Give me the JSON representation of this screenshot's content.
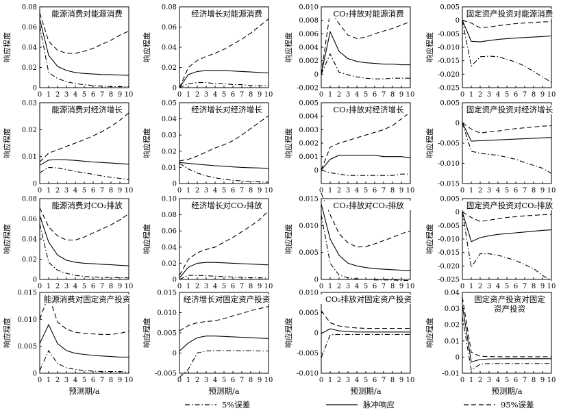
{
  "ylabel": "响应程度",
  "xlabel": "预测期/a",
  "x_ticks": [
    "0",
    "1",
    "2",
    "3",
    "4",
    "5",
    "6",
    "7",
    "8",
    "9",
    "10"
  ],
  "legend": [
    {
      "label": "5%误差",
      "style": "dashdot"
    },
    {
      "label": "脉冲响应",
      "style": "solid"
    },
    {
      "label": "95%误差",
      "style": "dashed"
    }
  ],
  "chart_data": [
    {
      "type": "line",
      "title": "能源消费对能源消费",
      "ylim": [
        0,
        0.08
      ],
      "yticks": [
        0,
        0.02,
        0.04,
        0.06,
        0.08
      ],
      "ytick_labels": [
        "0",
        "0.02",
        "0.04",
        "0.06",
        "0.08"
      ],
      "x": [
        0,
        1,
        2,
        3,
        4,
        5,
        6,
        7,
        8,
        9,
        10
      ],
      "lower": [
        0.061,
        0.015,
        0.009,
        0.006,
        0.004,
        0.003,
        0.002,
        0.0015,
        0.001,
        0.001,
        0.001
      ],
      "impulse": [
        0.068,
        0.032,
        0.021,
        0.017,
        0.015,
        0.014,
        0.0135,
        0.013,
        0.0128,
        0.0125,
        0.0123
      ],
      "upper": [
        0.074,
        0.046,
        0.037,
        0.034,
        0.034,
        0.036,
        0.039,
        0.043,
        0.047,
        0.052,
        0.056
      ]
    },
    {
      "type": "line",
      "title": "经济增长对能源消费",
      "ylim": [
        0,
        0.08
      ],
      "yticks": [
        0,
        0.02,
        0.04,
        0.06,
        0.08
      ],
      "ytick_labels": [
        "0",
        "0.02",
        "0.04",
        "0.06",
        "0.08"
      ],
      "x": [
        0,
        1,
        2,
        3,
        4,
        5,
        6,
        7,
        8,
        9,
        10
      ],
      "lower": [
        0,
        0.004,
        0.005,
        0.005,
        0.004,
        0.004,
        0.003,
        0.003,
        0.002,
        0.002,
        0.002
      ],
      "impulse": [
        0,
        0.013,
        0.016,
        0.017,
        0.017,
        0.017,
        0.0165,
        0.016,
        0.0155,
        0.015,
        0.0145
      ],
      "upper": [
        0,
        0.02,
        0.027,
        0.031,
        0.034,
        0.038,
        0.043,
        0.048,
        0.054,
        0.061,
        0.068
      ]
    },
    {
      "type": "line",
      "title": "CO₂排放对能源消费",
      "ylim": [
        -0.002,
        0.01
      ],
      "yticks": [
        -0.002,
        0,
        0.002,
        0.004,
        0.006,
        0.008,
        0.01
      ],
      "ytick_labels": [
        "-0.002",
        "0",
        "0.002",
        "0.004",
        "0.006",
        "0.008",
        "0.010"
      ],
      "x": [
        0,
        1,
        2,
        3,
        4,
        5,
        6,
        7,
        8,
        9,
        10
      ],
      "lower": [
        0,
        0.003,
        0.0003,
        -0.0001,
        -0.0004,
        -0.0006,
        -0.0007,
        -0.0007,
        -0.0006,
        -0.0006,
        -0.0006
      ],
      "impulse": [
        0,
        0.0063,
        0.0034,
        0.0023,
        0.0019,
        0.0017,
        0.0016,
        0.0015,
        0.0015,
        0.0014,
        0.0014
      ],
      "upper": [
        0,
        0.0093,
        0.0075,
        0.0058,
        0.0053,
        0.0055,
        0.006,
        0.0064,
        0.0068,
        0.0073,
        0.0078
      ]
    },
    {
      "type": "line",
      "title": "固定资产投资对能源消费",
      "ylim": [
        -0.025,
        0.005
      ],
      "yticks": [
        -0.025,
        -0.02,
        -0.015,
        -0.01,
        -0.005,
        0,
        0.005
      ],
      "ytick_labels": [
        "-0.025",
        "-0.020",
        "-0.015",
        "-0.010",
        "-0.005",
        "0",
        "0.005"
      ],
      "x": [
        0,
        1,
        2,
        3,
        4,
        5,
        6,
        7,
        8,
        9,
        10
      ],
      "lower": [
        0,
        -0.017,
        -0.0135,
        -0.0133,
        -0.0135,
        -0.0145,
        -0.0155,
        -0.017,
        -0.019,
        -0.021,
        -0.023
      ],
      "impulse": [
        0,
        -0.0078,
        -0.008,
        -0.0075,
        -0.0071,
        -0.0068,
        -0.0066,
        -0.0064,
        -0.0062,
        -0.006,
        -0.0058
      ],
      "upper": [
        0,
        -0.001,
        -0.0028,
        -0.0025,
        -0.002,
        -0.0016,
        -0.0012,
        -0.001,
        -0.0008,
        -0.0006,
        -0.0005
      ]
    },
    {
      "type": "line",
      "title": "能源消费对经济增长",
      "ylim": [
        0,
        0.03
      ],
      "yticks": [
        0,
        0.01,
        0.02,
        0.03
      ],
      "ytick_labels": [
        "0",
        "0.01",
        "0.02",
        "0.03"
      ],
      "x": [
        0,
        1,
        2,
        3,
        4,
        5,
        6,
        7,
        8,
        9,
        10
      ],
      "lower": [
        0.004,
        0.006,
        0.0058,
        0.0052,
        0.0045,
        0.004,
        0.0034,
        0.0028,
        0.0023,
        0.0019,
        0.0015
      ],
      "impulse": [
        0.0068,
        0.0087,
        0.0089,
        0.0088,
        0.0086,
        0.0083,
        0.008,
        0.0078,
        0.0076,
        0.0074,
        0.0072
      ],
      "upper": [
        0.008,
        0.0113,
        0.0125,
        0.0138,
        0.015,
        0.0163,
        0.0177,
        0.0193,
        0.0212,
        0.0235,
        0.0262
      ]
    },
    {
      "type": "line",
      "title": "经济增长对经济增长",
      "ylim": [
        0,
        0.05
      ],
      "yticks": [
        0,
        0.01,
        0.02,
        0.03,
        0.04,
        0.05
      ],
      "ytick_labels": [
        "0",
        "0.01",
        "0.02",
        "0.03",
        "0.04",
        "0.05"
      ],
      "x": [
        0,
        1,
        2,
        3,
        4,
        5,
        6,
        7,
        8,
        9,
        10
      ],
      "lower": [
        0.0125,
        0.009,
        0.0065,
        0.0048,
        0.0035,
        0.0027,
        0.002,
        0.0016,
        0.0012,
        0.001,
        0.0008
      ],
      "impulse": [
        0.013,
        0.0125,
        0.012,
        0.0115,
        0.011,
        0.0107,
        0.0103,
        0.01,
        0.0098,
        0.0096,
        0.0093
      ],
      "upper": [
        0.014,
        0.015,
        0.017,
        0.0195,
        0.022,
        0.024,
        0.0265,
        0.03,
        0.034,
        0.038,
        0.042
      ]
    },
    {
      "type": "line",
      "title": "CO₂排放对经济增长",
      "ylim": [
        -0.001,
        0.005
      ],
      "yticks": [
        0,
        0.001,
        0.002,
        0.003,
        0.004,
        0.005
      ],
      "ytick_labels": [
        "0",
        "0.001",
        "0.002",
        "0.003",
        "0.004",
        "0.005"
      ],
      "x": [
        0,
        1,
        2,
        3,
        4,
        5,
        6,
        7,
        8,
        9,
        10
      ],
      "lower": [
        0,
        -0.0002,
        -0.0003,
        -0.0004,
        -0.0004,
        -0.0004,
        -0.0004,
        -0.0004,
        -0.0004,
        -0.0003,
        -0.0003
      ],
      "impulse": [
        0,
        0.0008,
        0.0011,
        0.0011,
        0.0011,
        0.0011,
        0.0011,
        0.001,
        0.001,
        0.001,
        0.0009
      ],
      "upper": [
        0,
        0.0017,
        0.002,
        0.0022,
        0.0024,
        0.0026,
        0.0028,
        0.003,
        0.0033,
        0.0038,
        0.0043
      ]
    },
    {
      "type": "line",
      "title": "固定资产投资对经济增长",
      "ylim": [
        -0.015,
        0.005
      ],
      "yticks": [
        -0.015,
        -0.01,
        -0.005,
        0,
        0.005
      ],
      "ytick_labels": [
        "-0.015",
        "-0.010",
        "-0.005",
        "0",
        "0.005"
      ],
      "x": [
        0,
        1,
        2,
        3,
        4,
        5,
        6,
        7,
        8,
        9,
        10
      ],
      "lower": [
        0,
        -0.007,
        -0.0075,
        -0.0078,
        -0.008,
        -0.0085,
        -0.009,
        -0.0098,
        -0.0105,
        -0.0112,
        -0.0125
      ],
      "impulse": [
        0,
        -0.0045,
        -0.0044,
        -0.0043,
        -0.0042,
        -0.0041,
        -0.004,
        -0.0039,
        -0.0038,
        -0.0037,
        -0.0036
      ],
      "upper": [
        0,
        -0.0015,
        -0.0025,
        -0.0022,
        -0.002,
        -0.0017,
        -0.0014,
        -0.0012,
        -0.001,
        -0.0008,
        -0.0007
      ]
    },
    {
      "type": "line",
      "title": "能源消费对CO₂排放",
      "ylim": [
        0,
        0.08
      ],
      "yticks": [
        0,
        0.02,
        0.04,
        0.06,
        0.08
      ],
      "ytick_labels": [
        "0",
        "0.02",
        "0.04",
        "0.06",
        "0.08"
      ],
      "x": [
        0,
        1,
        2,
        3,
        4,
        5,
        6,
        7,
        8,
        9,
        10
      ],
      "lower": [
        0.055,
        0.017,
        0.009,
        0.006,
        0.004,
        0.003,
        0.0025,
        0.002,
        0.002,
        0.0018,
        0.0015
      ],
      "impulse": [
        0.063,
        0.037,
        0.024,
        0.019,
        0.017,
        0.016,
        0.0155,
        0.015,
        0.0145,
        0.014,
        0.0135
      ],
      "upper": [
        0.071,
        0.052,
        0.043,
        0.039,
        0.039,
        0.042,
        0.046,
        0.05,
        0.054,
        0.059,
        0.065
      ]
    },
    {
      "type": "line",
      "title": "经济增长对CO₂排放",
      "ylim": [
        0,
        0.1
      ],
      "yticks": [
        0,
        0.02,
        0.04,
        0.06,
        0.08,
        0.1
      ],
      "ytick_labels": [
        "0",
        "0.02",
        "0.04",
        "0.06",
        "0.08",
        "0.10"
      ],
      "x": [
        0,
        1,
        2,
        3,
        4,
        5,
        6,
        7,
        8,
        9,
        10
      ],
      "lower": [
        0,
        0.005,
        0.005,
        0.0045,
        0.004,
        0.0035,
        0.003,
        0.0025,
        0.002,
        0.002,
        0.0015
      ],
      "impulse": [
        0.002,
        0.015,
        0.02,
        0.021,
        0.021,
        0.0205,
        0.02,
        0.0195,
        0.019,
        0.0185,
        0.018
      ],
      "upper": [
        0.005,
        0.025,
        0.033,
        0.037,
        0.04,
        0.046,
        0.052,
        0.059,
        0.066,
        0.074,
        0.085
      ]
    },
    {
      "type": "line",
      "title": "CO₂排放对CO₂排放",
      "ylim": [
        0,
        0.015
      ],
      "yticks": [
        0,
        0.005,
        0.01,
        0.015
      ],
      "ytick_labels": [
        "0",
        "0.005",
        "0.010",
        "0.015"
      ],
      "x": [
        0,
        1,
        2,
        3,
        4,
        5,
        6,
        7,
        8,
        9,
        10
      ],
      "lower": [
        0.012,
        0.003,
        0.0008,
        0.0003,
        0.0001,
        0,
        -0.0001,
        -0.0001,
        -0.0001,
        -0.0002,
        -0.0002
      ],
      "impulse": [
        0.014,
        0.0075,
        0.0045,
        0.003,
        0.0025,
        0.0022,
        0.002,
        0.0019,
        0.0018,
        0.0017,
        0.0016
      ],
      "upper": [
        0.016,
        0.012,
        0.0085,
        0.0068,
        0.006,
        0.0061,
        0.0066,
        0.0072,
        0.0078,
        0.0085,
        0.009
      ]
    },
    {
      "type": "line",
      "title": "固定资产投资对CO₂排放",
      "ylim": [
        -0.025,
        0.005
      ],
      "yticks": [
        -0.025,
        -0.02,
        -0.015,
        -0.01,
        -0.005,
        0,
        0.005
      ],
      "ytick_labels": [
        "-0.025",
        "-0.020",
        "-0.015",
        "-0.010",
        "-0.005",
        "0",
        "0.005"
      ],
      "x": [
        0,
        1,
        2,
        3,
        4,
        5,
        6,
        7,
        8,
        9,
        10
      ],
      "lower": [
        0,
        -0.0205,
        -0.0155,
        -0.0155,
        -0.016,
        -0.017,
        -0.018,
        -0.0195,
        -0.021,
        -0.0235,
        -0.0255
      ],
      "impulse": [
        0,
        -0.011,
        -0.0095,
        -0.0088,
        -0.0083,
        -0.008,
        -0.0077,
        -0.0074,
        -0.0071,
        -0.0068,
        -0.0066
      ],
      "upper": [
        0,
        -0.002,
        -0.0035,
        -0.003,
        -0.0025,
        -0.002,
        -0.0017,
        -0.0014,
        -0.0012,
        -0.001,
        -0.0009
      ]
    },
    {
      "type": "line",
      "title": "能源消费对固定资产投资",
      "ylim": [
        0,
        0.015
      ],
      "yticks": [
        0,
        0.005,
        0.01,
        0.015
      ],
      "ytick_labels": [
        "0",
        "0.005",
        "0.010",
        "0.015"
      ],
      "x": [
        0,
        1,
        2,
        3,
        4,
        5,
        6,
        7,
        8,
        9,
        10
      ],
      "lower": [
        0.0005,
        0.0042,
        0.0018,
        0.001,
        0.0007,
        0.0005,
        0.0004,
        0.0003,
        0.0003,
        0.0003,
        0.0002
      ],
      "impulse": [
        0.0055,
        0.009,
        0.0055,
        0.0042,
        0.0037,
        0.0035,
        0.0033,
        0.0032,
        0.0031,
        0.003,
        0.003
      ],
      "upper": [
        0.01,
        0.0145,
        0.0095,
        0.0082,
        0.0076,
        0.0074,
        0.0073,
        0.0072,
        0.0072,
        0.0074,
        0.0078
      ]
    },
    {
      "type": "line",
      "title": "经济增长对固定资产投资",
      "ylim": [
        -0.005,
        0.015
      ],
      "yticks": [
        -0.005,
        0,
        0.005,
        0.01,
        0.015
      ],
      "ytick_labels": [
        "-0.005",
        "0",
        "0.005",
        "0.010",
        "0.015"
      ],
      "x": [
        0,
        1,
        2,
        3,
        4,
        5,
        6,
        7,
        8,
        9,
        10
      ],
      "lower": [
        -0.006,
        -0.004,
        0,
        0.0005,
        0.0006,
        0.0006,
        0.0006,
        0.0006,
        0.0006,
        0.0005,
        0.0005
      ],
      "impulse": [
        0.0005,
        0.0025,
        0.0038,
        0.0042,
        0.0042,
        0.0041,
        0.004,
        0.0039,
        0.0038,
        0.0037,
        0.0036
      ],
      "upper": [
        0.0055,
        0.0068,
        0.0075,
        0.0078,
        0.008,
        0.0085,
        0.0092,
        0.0098,
        0.0105,
        0.011,
        0.0115
      ]
    },
    {
      "type": "line",
      "title": "CO₂排放对固定资产投资",
      "ylim": [
        -0.01,
        0.01
      ],
      "yticks": [
        -0.01,
        -0.005,
        0,
        0.005,
        0.01
      ],
      "ytick_labels": [
        "-0.010",
        "-0.005",
        "0",
        "0.005",
        "0.010"
      ],
      "x": [
        0,
        1,
        2,
        3,
        4,
        5,
        6,
        7,
        8,
        9,
        10
      ],
      "lower": [
        -0.0062,
        -0.0005,
        -0.0004,
        -0.0004,
        -0.0004,
        -0.0004,
        -0.0004,
        -0.0004,
        -0.0004,
        -0.0004,
        -0.0004
      ],
      "impulse": [
        -0.0002,
        0.001,
        0.0005,
        0.0003,
        0.0002,
        0.0002,
        0.0002,
        0.0002,
        0.0002,
        0.0002,
        0.0002
      ],
      "upper": [
        0.0055,
        0.0025,
        0.0017,
        0.0014,
        0.0012,
        0.0011,
        0.0011,
        0.0011,
        0.0011,
        0.0011,
        0.0011
      ]
    },
    {
      "type": "line",
      "title": "固定资产投资对固定资产投资",
      "title_lines": [
        "固定资产投资对固定",
        "资产投资"
      ],
      "ylim": [
        -0.01,
        0.04
      ],
      "yticks": [
        -0.01,
        0,
        0.01,
        0.02,
        0.03,
        0.04
      ],
      "ytick_labels": [
        "-0.01",
        "0",
        "0.01",
        "0.02",
        "0.03",
        "0.04"
      ],
      "x": [
        0,
        1,
        2,
        3,
        4,
        5,
        6,
        7,
        8,
        9,
        10
      ],
      "lower": [
        0.025,
        -0.008,
        -0.0045,
        -0.004,
        -0.004,
        -0.004,
        -0.004,
        -0.004,
        -0.004,
        -0.004,
        -0.004
      ],
      "impulse": [
        0.032,
        -0.003,
        -0.0015,
        -0.0012,
        -0.0011,
        -0.001,
        -0.001,
        -0.001,
        -0.001,
        -0.001,
        -0.001
      ],
      "upper": [
        0.037,
        0.003,
        0.0005,
        0.0003,
        0.0002,
        0.0002,
        0.0002,
        0.0002,
        0.0002,
        0.0002,
        0.0002
      ]
    }
  ]
}
